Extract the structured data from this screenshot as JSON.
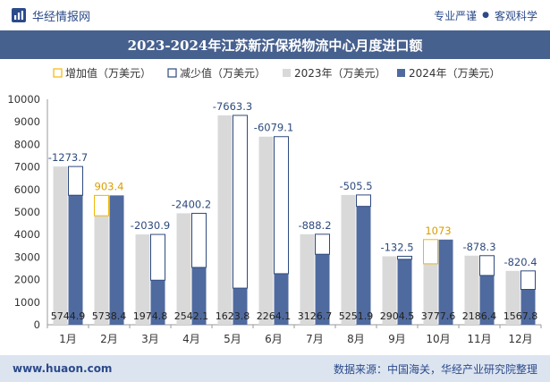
{
  "header": {
    "brand": "华经情报网",
    "slogan_left": "专业严谨",
    "slogan_dot": "●",
    "slogan_right": "客观科学"
  },
  "footer": {
    "website": "www.huaon.com",
    "source": "数据来源：中国海关，华经产业研究院整理"
  },
  "colors": {
    "bar2023": "#d9d9d9",
    "bar2024": "#4f6a9e",
    "increase": "#f2b705",
    "decrease": "#2e4a7d",
    "title_bg": "#47618f"
  },
  "chart_data": {
    "type": "bar",
    "title": "2023-2024年江苏新沂保税物流中心月度进口额",
    "legend": [
      "增加值（万美元）",
      "减少值（万美元）",
      "2023年（万美元）",
      "2024年（万美元）"
    ],
    "legend_position": "top",
    "categories": [
      "1月",
      "2月",
      "3月",
      "4月",
      "5月",
      "6月",
      "7月",
      "8月",
      "9月",
      "10月",
      "11月",
      "12月"
    ],
    "ylim": [
      0,
      10000
    ],
    "yticks": [
      0,
      1000,
      2000,
      3000,
      4000,
      5000,
      6000,
      7000,
      8000,
      9000,
      10000
    ],
    "series": [
      {
        "name": "2023年（万美元）",
        "values": [
          7018.6,
          4835.0,
          4005.8,
          4942.3,
          9287.1,
          8343.4,
          4014.9,
          5757.4,
          3037.0,
          2704.6,
          3064.7,
          2388.2
        ]
      },
      {
        "name": "2024年（万美元）",
        "values": [
          5744.9,
          5738.4,
          1974.8,
          2542.1,
          1623.8,
          2264.1,
          3126.7,
          5251.9,
          2904.5,
          3777.6,
          2186.4,
          1567.8
        ]
      }
    ],
    "change_labels": [
      "-1273.7",
      "903.4",
      "-2030.9",
      "-2400.2",
      "-7663.3",
      "-6079.1",
      "-888.2",
      "-505.5",
      "-132.5",
      "1073",
      "-878.3",
      "-820.4"
    ],
    "value_labels": [
      "5744.9",
      "5738.4",
      "1974.8",
      "2542.1",
      "1623.8",
      "2264.1",
      "3126.7",
      "5251.9",
      "2904.5",
      "3777.6",
      "2186.4",
      "1567.8"
    ]
  }
}
